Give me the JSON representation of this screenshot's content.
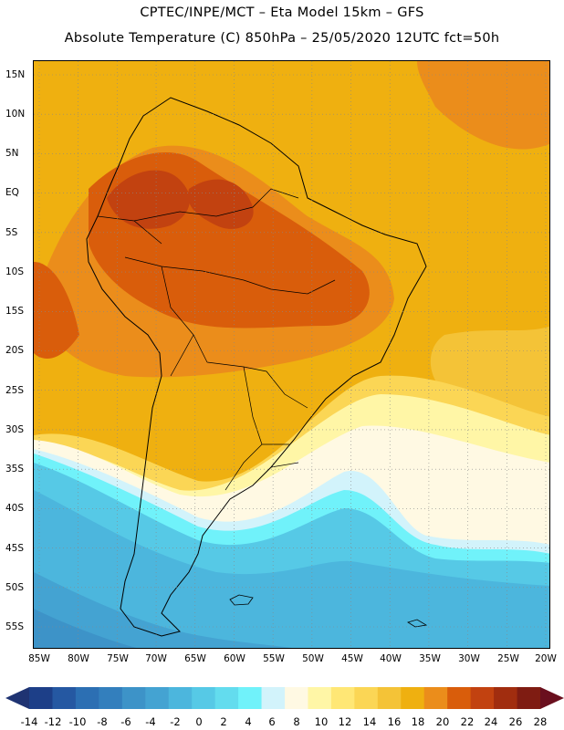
{
  "header": {
    "title_line1": "CPTEC/INPE/MCT –  Eta Model 15km – GFS",
    "title_line2": "Absolute Temperature (C) 850hPa – 25/05/2020 12UTC fct=50h"
  },
  "axes": {
    "lat_labels": [
      "15N",
      "10N",
      "5N",
      "EQ",
      "5S",
      "10S",
      "15S",
      "20S",
      "25S",
      "30S",
      "35S",
      "40S",
      "45S",
      "50S",
      "55S"
    ],
    "lon_labels": [
      "85W",
      "80W",
      "75W",
      "70W",
      "65W",
      "60W",
      "55W",
      "50W",
      "45W",
      "40W",
      "35W",
      "30W",
      "25W",
      "20W"
    ]
  },
  "colorbar": {
    "labels": [
      "-14",
      "-12",
      "-10",
      "-8",
      "-6",
      "-4",
      "-2",
      "0",
      "2",
      "4",
      "6",
      "8",
      "10",
      "12",
      "14",
      "16",
      "18",
      "20",
      "22",
      "24",
      "26",
      "28"
    ],
    "colors": [
      "#1d3f88",
      "#2558a2",
      "#2c6fb3",
      "#337fbd",
      "#3d93c8",
      "#44a3d2",
      "#4cb6dd",
      "#56c9e6",
      "#63dcee",
      "#70f2fa",
      "#d2f3fb",
      "#fff9e3",
      "#fff6a6",
      "#ffe775",
      "#fbd655",
      "#f4c337",
      "#efb010",
      "#eb8d1b",
      "#d95d0b",
      "#c24210",
      "#a12d0f",
      "#7f1c12"
    ],
    "left_arrow_color": "#1f3372",
    "right_arrow_color": "#6a0f1e"
  },
  "map_colors": {
    "very_hot": "#c24210",
    "hot": "#d95d0b",
    "warm_orange": "#eb8d1b",
    "warm": "#efb010",
    "mild": "#f4c337",
    "yellow": "#fbd655",
    "pale_yellow": "#fff6a6",
    "cream": "#fff9e3",
    "ice": "#d2f3fb",
    "cyan": "#70f2fa",
    "aqua": "#56c9e6",
    "cool": "#4cb6dd",
    "cold": "#44a3d2",
    "colder": "#3d93c8"
  }
}
